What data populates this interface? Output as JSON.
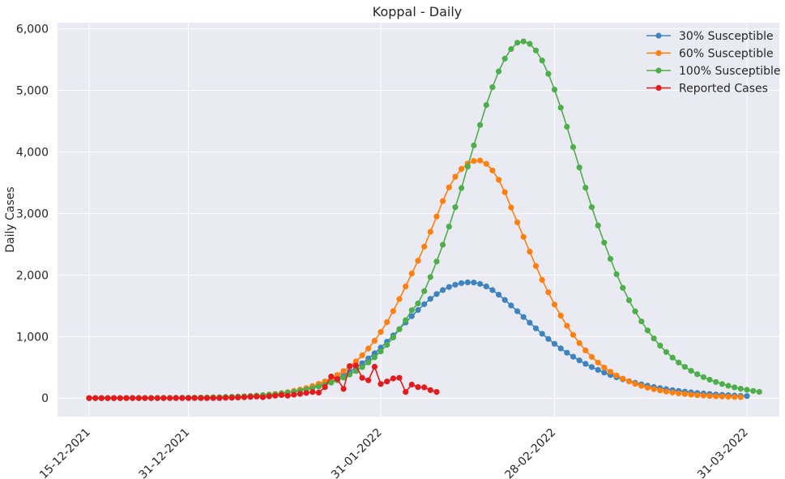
{
  "chart_data": {
    "type": "line",
    "title": "Koppal - Daily",
    "xlabel": "",
    "ylabel": "Daily Cases",
    "x_start": "15-12-2021",
    "x_end": "31-03-2022",
    "xlim": [
      "15-12-2021",
      "31-03-2022"
    ],
    "ylim": [
      -300,
      6100
    ],
    "x_ticks": [
      {
        "date": "15-12-2021",
        "label": "15-12-2021"
      },
      {
        "date": "31-12-2021",
        "label": "31-12-2021"
      },
      {
        "date": "31-01-2022",
        "label": "31-01-2022"
      },
      {
        "date": "28-02-2022",
        "label": "28-02-2022"
      },
      {
        "date": "31-03-2022",
        "label": "31-03-2022"
      }
    ],
    "y_ticks": [
      {
        "value": 0,
        "label": "0"
      },
      {
        "value": 1000,
        "label": "1,000"
      },
      {
        "value": 2000,
        "label": "2,000"
      },
      {
        "value": 3000,
        "label": "3,000"
      },
      {
        "value": 4000,
        "label": "4,000"
      },
      {
        "value": 5000,
        "label": "5,000"
      },
      {
        "value": 6000,
        "label": "6,000"
      }
    ],
    "grid": true,
    "legend_position": "top-right",
    "background": "#eaeaf2",
    "series": [
      {
        "name": "30% Susceptible",
        "color": "#3d84bf",
        "start": "15-12-2021",
        "values": [
          0,
          0,
          0,
          0,
          0,
          0,
          1,
          1,
          1,
          1,
          2,
          2,
          3,
          3,
          4,
          5,
          6,
          7,
          8,
          10,
          12,
          14,
          17,
          20,
          24,
          28,
          33,
          40,
          47,
          55,
          65,
          77,
          91,
          107,
          126,
          148,
          174,
          204,
          238,
          278,
          323,
          374,
          432,
          496,
          567,
          645,
          730,
          821,
          917,
          1018,
          1122,
          1227,
          1331,
          1432,
          1527,
          1614,
          1691,
          1756,
          1806,
          1843,
          1869,
          1881,
          1878,
          1856,
          1815,
          1755,
          1680,
          1595,
          1505,
          1412,
          1318,
          1225,
          1134,
          1046,
          962,
          883,
          808,
          738,
          673,
          613,
          557,
          505,
          458,
          415,
          375,
          339,
          306,
          276,
          249,
          224,
          202,
          181,
          163,
          146,
          131,
          117,
          105,
          94,
          84,
          75,
          67,
          60,
          53,
          47,
          42,
          37,
          33
        ]
      },
      {
        "name": "60% Susceptible",
        "color": "#ff7f0e",
        "start": "15-12-2021",
        "values": [
          0,
          0,
          0,
          0,
          0,
          0,
          1,
          1,
          1,
          1,
          2,
          2,
          3,
          3,
          4,
          5,
          6,
          7,
          8,
          10,
          12,
          14,
          17,
          20,
          24,
          28,
          33,
          40,
          48,
          57,
          68,
          81,
          97,
          116,
          138,
          164,
          195,
          231,
          272,
          320,
          376,
          440,
          514,
          598,
          695,
          806,
          932,
          1075,
          1236,
          1415,
          1610,
          1815,
          2024,
          2233,
          2461,
          2702,
          2951,
          3201,
          3424,
          3596,
          3725,
          3811,
          3854,
          3861,
          3806,
          3700,
          3548,
          3346,
          3098,
          2856,
          2621,
          2380,
          2147,
          1922,
          1719,
          1520,
          1341,
          1176,
          1027,
          894,
          775,
          670,
          578,
          497,
          428,
          368,
          316,
          271,
          232,
          199,
          170,
          146,
          125,
          107,
          91,
          78,
          67,
          57,
          48,
          41,
          35,
          30,
          26,
          22,
          19,
          16
        ]
      },
      {
        "name": "100% Susceptible",
        "color": "#4daf4a",
        "start": "15-12-2021",
        "values": [
          0,
          0,
          0,
          0,
          0,
          0,
          1,
          1,
          1,
          1,
          2,
          2,
          3,
          3,
          4,
          5,
          6,
          7,
          8,
          10,
          12,
          14,
          17,
          20,
          24,
          28,
          33,
          40,
          47,
          55,
          64,
          75,
          88,
          103,
          120,
          140,
          162,
          188,
          218,
          252,
          290,
          333,
          383,
          440,
          505,
          580,
          664,
          759,
          866,
          985,
          1118,
          1266,
          1429,
          1539,
          1739,
          1968,
          2219,
          2492,
          2787,
          3103,
          3414,
          3761,
          4105,
          4438,
          4762,
          5052,
          5308,
          5516,
          5672,
          5775,
          5796,
          5756,
          5648,
          5485,
          5269,
          5012,
          4720,
          4409,
          4079,
          3747,
          3419,
          3103,
          2805,
          2527,
          2262,
          2012,
          1791,
          1590,
          1409,
          1246,
          1100,
          970,
          853,
          750,
          659,
          578,
          507,
          444,
          389,
          341,
          299,
          262,
          229,
          200,
          175,
          153,
          134,
          117,
          102
        ]
      },
      {
        "name": "Reported Cases",
        "color": "#e41a1c",
        "start": "15-12-2021",
        "values": [
          0,
          0,
          0,
          0,
          0,
          0,
          0,
          0,
          0,
          0,
          0,
          0,
          0,
          0,
          0,
          0,
          0,
          0,
          0,
          0,
          0,
          0,
          5,
          5,
          10,
          15,
          20,
          25,
          15,
          30,
          40,
          50,
          40,
          55,
          70,
          85,
          100,
          90,
          180,
          350,
          310,
          150,
          520,
          530,
          330,
          290,
          510,
          230,
          270,
          320,
          330,
          100,
          220,
          180,
          175,
          130,
          100
        ]
      }
    ]
  }
}
